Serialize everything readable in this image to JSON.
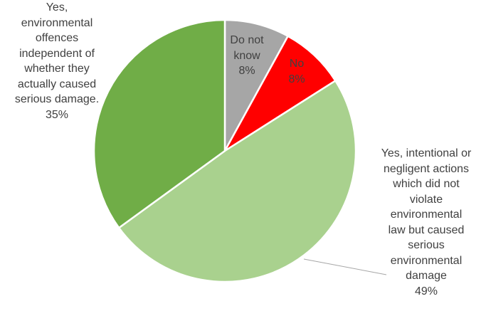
{
  "chart_data": {
    "type": "pie",
    "title": "",
    "colors": [
      "#70ad47",
      "#a9d18e",
      "#a6a6a6",
      "#ff0000"
    ],
    "slices": [
      {
        "label_lines": [
          "Yes,",
          "environmental",
          "offences",
          "independent of",
          "whether they",
          "actually caused",
          "serious damage."
        ],
        "pct_text": "35%",
        "value": 35
      },
      {
        "label_lines": [
          "Yes, intentional or",
          "negligent actions",
          "which did not",
          "violate",
          "environmental",
          "law but caused",
          "serious",
          "environmental",
          "damage"
        ],
        "pct_text": "49%",
        "value": 49
      },
      {
        "label_lines": [
          "Do not",
          "know"
        ],
        "pct_text": "8%",
        "value": 8
      },
      {
        "label_lines": [
          "No"
        ],
        "pct_text": "8%",
        "value": 8
      }
    ]
  }
}
